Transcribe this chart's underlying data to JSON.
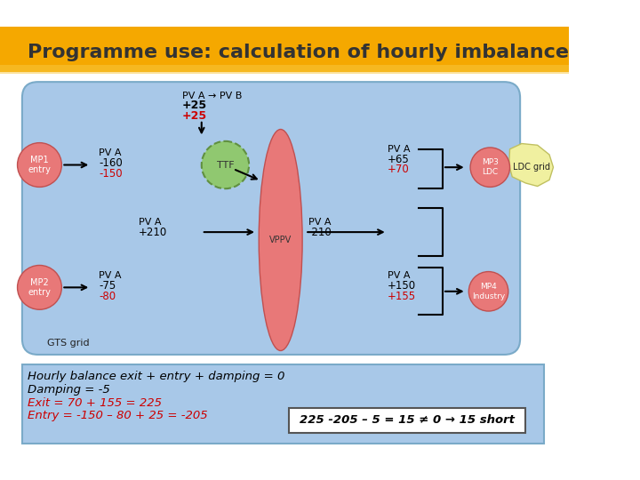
{
  "title": "Programme use: calculation of hourly imbalance",
  "title_bg": "#F5A800",
  "title_color": "#333333",
  "bg_color": "#FFFFFF",
  "main_box_color": "#A8C8E8",
  "main_box_border": "#7AAAC8",
  "bottom_box_color": "#A8C8E8",
  "pink_ellipse_color": "#E87878",
  "green_circle_color": "#90C870",
  "mp_circle_color": "#E87878",
  "mp3_circle_color": "#E87878",
  "mp4_circle_color": "#E87878",
  "ldc_color": "#F0F0A0",
  "text_black": "#000000",
  "text_red": "#CC0000",
  "text_dark": "#222222",
  "pva_arrow_top_text": [
    "PV A → PV B",
    "+25",
    "+25"
  ],
  "pva_arrow_top_colors": [
    "#000000",
    "#000000",
    "#CC0000"
  ],
  "mp1_label": "MP1\nentry",
  "mp1_pva": "PV A",
  "mp1_v1": "-160",
  "mp1_v2": "-150",
  "mp2_label": "MP2\nentry",
  "mp2_pva": "PV A",
  "mp2_v1": "-75",
  "mp2_v2": "-80",
  "ttf_label": "TTF",
  "vppv_label": "VPPV",
  "pva_mid_left": "PV A",
  "pva_mid_left_v": "+210",
  "pva_mid_right": "PV A",
  "pva_mid_right_v": "-210",
  "mp3_label": "MP3\nLDC",
  "mp3_pva": "PV A",
  "mp3_v1": "+65",
  "mp3_v2": "+70",
  "mp4_label": "MP4\nIndustry",
  "mp4_pva": "PV A",
  "mp4_v1": "+150",
  "mp4_v2": "+155",
  "ldc_label": "LDC grid",
  "gts_label": "GTS grid",
  "bottom_line1": "Hourly balance exit + entry + damping = 0",
  "bottom_line2": "Damping = -5",
  "bottom_line3": "Exit = 70 + 155 = 225",
  "bottom_line4": "Entry = -150 – 80 + 25 = -205",
  "bottom_box_text": "225 -205 – 5 = 15 ≠ 0 → 15 short",
  "bottom_line1_color": "#000000",
  "bottom_line2_color": "#000000",
  "bottom_line3_color": "#CC0000",
  "bottom_line4_color": "#CC0000",
  "bottom_box_text_color": "#000000"
}
